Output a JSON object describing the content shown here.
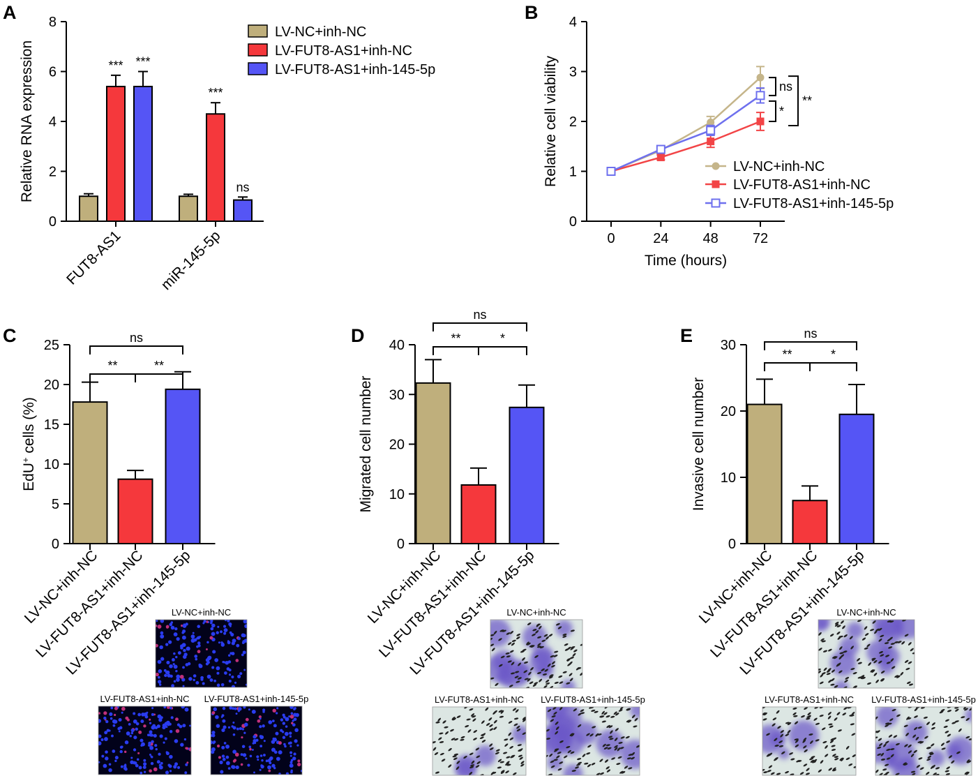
{
  "panels": {
    "A": "A",
    "B": "B",
    "C": "C",
    "D": "D",
    "E": "E"
  },
  "colors": {
    "lvnc": "#bfaf7c",
    "fut8": "#f5383c",
    "inh145": "#5555f5",
    "lvnc_line": "#c5b58a",
    "fut8_line": "#f24446",
    "inh145_line": "#6e70ee"
  },
  "legend_labels": [
    "LV-NC+inh-NC",
    "LV-FUT8-AS1+inh-NC",
    "LV-FUT8-AS1+inh-145-5p"
  ],
  "micrographs": {
    "C": {
      "top_label": "LV-NC+inh-NC",
      "left_label": "LV-FUT8-AS1+inh-NC",
      "right_label": "LV-FUT8-AS1+inh-145-5p",
      "style": "fluorescence"
    },
    "D": {
      "top_label": "LV-NC+inh-NC",
      "left_label": "LV-FUT8-AS1+inh-NC",
      "right_label": "LV-FUT8-AS1+inh-145-5p",
      "style": "transwell"
    },
    "E": {
      "top_label": "LV-NC+inh-NC",
      "left_label": "LV-FUT8-AS1+inh-NC",
      "right_label": "LV-FUT8-AS1+inh-145-5p",
      "style": "transwell"
    }
  },
  "chart_data": [
    {
      "id": "A",
      "type": "bar",
      "ylabel": "Relative RNA expression",
      "xlabel": "",
      "ylim": [
        0,
        8
      ],
      "yticks": [
        0,
        2,
        4,
        6,
        8
      ],
      "categories": [
        "FUT8-AS1",
        "miR-145-5p"
      ],
      "series": [
        {
          "name": "LV-NC+inh-NC",
          "values": [
            1.0,
            1.0
          ],
          "errors": [
            0.1,
            0.08
          ],
          "sig": [
            "",
            ""
          ]
        },
        {
          "name": "LV-FUT8-AS1+inh-NC",
          "values": [
            5.4,
            4.3
          ],
          "errors": [
            0.45,
            0.45
          ],
          "sig": [
            "***",
            "***"
          ]
        },
        {
          "name": "LV-FUT8-AS1+inh-145-5p",
          "values": [
            5.4,
            0.85
          ],
          "errors": [
            0.6,
            0.12
          ],
          "sig": [
            "***",
            "ns"
          ]
        }
      ],
      "legend": "top-right"
    },
    {
      "id": "B",
      "type": "line",
      "ylabel": "Relative cell viability",
      "xlabel": "Time (hours)",
      "ylim": [
        0,
        4
      ],
      "yticks": [
        0,
        1,
        2,
        3,
        4
      ],
      "x": [
        0,
        24,
        48,
        72
      ],
      "series": [
        {
          "name": "LV-NC+inh-NC",
          "values": [
            1.0,
            1.42,
            1.98,
            2.88
          ],
          "errors": [
            0.03,
            0.06,
            0.12,
            0.22
          ],
          "marker": "circle"
        },
        {
          "name": "LV-FUT8-AS1+inh-NC",
          "values": [
            1.0,
            1.28,
            1.6,
            2.0
          ],
          "errors": [
            0.03,
            0.05,
            0.12,
            0.18
          ],
          "marker": "square"
        },
        {
          "name": "LV-FUT8-AS1+inh-145-5p",
          "values": [
            1.0,
            1.44,
            1.82,
            2.52
          ],
          "errors": [
            0.03,
            0.05,
            0.1,
            0.15
          ],
          "marker": "open-square"
        }
      ],
      "annotations": [
        {
          "between": [
            "LV-NC+inh-NC",
            "LV-FUT8-AS1+inh-145-5p"
          ],
          "label": "ns"
        },
        {
          "between": [
            "LV-FUT8-AS1+inh-145-5p",
            "LV-FUT8-AS1+inh-NC"
          ],
          "label": "*"
        },
        {
          "between": [
            "LV-NC+inh-NC",
            "LV-FUT8-AS1+inh-NC"
          ],
          "label": "**"
        }
      ],
      "legend": "bottom-right"
    },
    {
      "id": "C",
      "type": "bar",
      "ylabel": "EdU+ cells (%)",
      "ylabel_main": "EdU",
      "ylabel_sup": "+",
      "ylabel_tail": " cells (%)",
      "ylim": [
        0,
        25
      ],
      "yticks": [
        0,
        5,
        10,
        15,
        20,
        25
      ],
      "categories": [
        "LV-NC+inh-NC",
        "LV-FUT8-AS1+inh-NC",
        "LV-FUT8-AS1+inh-145-5p"
      ],
      "values": [
        17.8,
        8.1,
        19.4
      ],
      "errors": [
        2.5,
        1.1,
        2.2
      ],
      "comparisons": [
        {
          "from": 0,
          "to": 1,
          "label": "**",
          "level": 0
        },
        {
          "from": 1,
          "to": 2,
          "label": "**",
          "level": 0
        },
        {
          "from": 0,
          "to": 2,
          "label": "ns",
          "level": 1
        }
      ]
    },
    {
      "id": "D",
      "type": "bar",
      "ylabel": "Migrated cell number",
      "ylim": [
        0,
        40
      ],
      "yticks": [
        0,
        10,
        20,
        30,
        40
      ],
      "categories": [
        "LV-NC+inh-NC",
        "LV-FUT8-AS1+inh-NC",
        "LV-FUT8-AS1+inh-145-5p"
      ],
      "values": [
        32.3,
        11.8,
        27.4
      ],
      "errors": [
        4.7,
        3.4,
        4.5
      ],
      "comparisons": [
        {
          "from": 0,
          "to": 1,
          "label": "**",
          "level": 0
        },
        {
          "from": 1,
          "to": 2,
          "label": "*",
          "level": 0
        },
        {
          "from": 0,
          "to": 2,
          "label": "ns",
          "level": 1
        }
      ]
    },
    {
      "id": "E",
      "type": "bar",
      "ylabel": "Invasive cell number",
      "ylim": [
        0,
        30
      ],
      "yticks": [
        0,
        10,
        20,
        30
      ],
      "categories": [
        "LV-NC+inh-NC",
        "LV-FUT8-AS1+inh-NC",
        "LV-FUT8-AS1+inh-145-5p"
      ],
      "values": [
        21.0,
        6.5,
        19.5
      ],
      "errors": [
        3.8,
        2.2,
        4.5
      ],
      "comparisons": [
        {
          "from": 0,
          "to": 1,
          "label": "**",
          "level": 0
        },
        {
          "from": 1,
          "to": 2,
          "label": "*",
          "level": 0
        },
        {
          "from": 0,
          "to": 2,
          "label": "ns",
          "level": 1
        }
      ]
    }
  ]
}
